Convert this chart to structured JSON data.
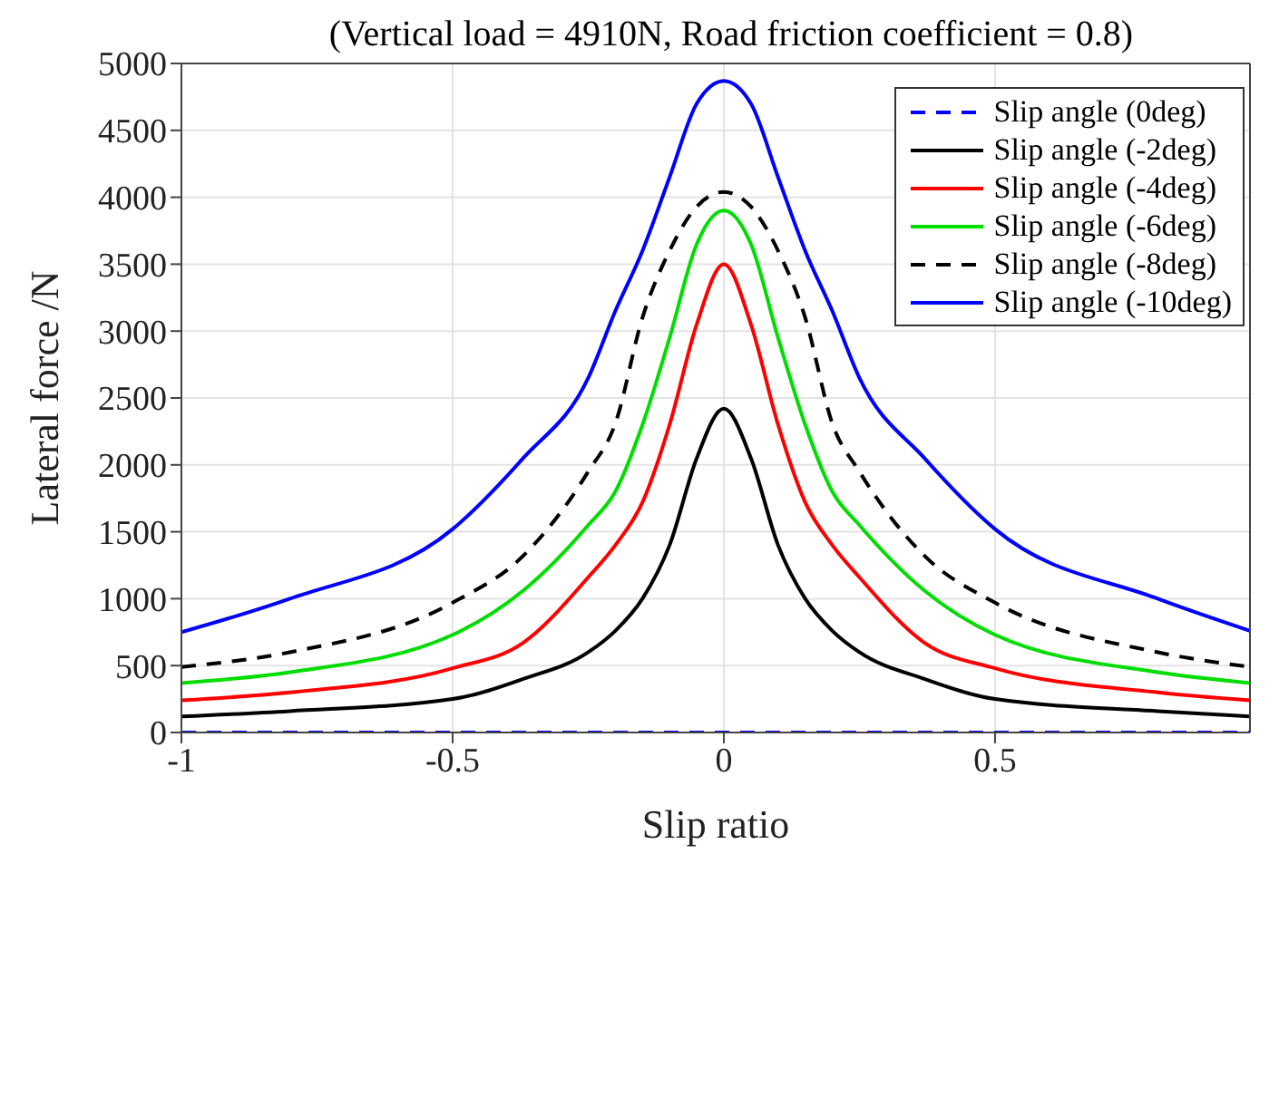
{
  "chart_data": {
    "type": "line",
    "title": "(Vertical load = 4910N, Road friction coefficient = 0.8)",
    "xlabel": "Slip ratio",
    "ylabel": "Lateral force /N",
    "x": [
      -1,
      -0.8,
      -0.5,
      -0.37,
      -0.25,
      -0.2,
      -0.15,
      -0.1,
      -0.05,
      0,
      0.05,
      0.1,
      0.15,
      0.2,
      0.25,
      0.37,
      0.5,
      0.8,
      0.97
    ],
    "series": [
      {
        "name": "Slip angle (0deg)",
        "color": "#0000ff",
        "line_style": "dashed",
        "values": [
          0,
          0,
          0,
          0,
          0,
          0,
          0,
          0,
          0,
          0,
          0,
          0,
          0,
          0,
          0,
          0,
          0,
          0,
          0
        ]
      },
      {
        "name": "Slip angle (-2deg)",
        "color": "#000000",
        "line_style": "solid",
        "values": [
          120,
          160,
          250,
          400,
          600,
          760,
          1000,
          1400,
          2050,
          2420,
          2050,
          1400,
          1000,
          760,
          600,
          400,
          250,
          160,
          120
        ]
      },
      {
        "name": "Slip angle (-4deg)",
        "color": "#ff0000",
        "line_style": "solid",
        "values": [
          240,
          300,
          480,
          670,
          1160,
          1400,
          1720,
          2300,
          3050,
          3500,
          3050,
          2300,
          1720,
          1400,
          1160,
          670,
          480,
          300,
          240
        ]
      },
      {
        "name": "Slip angle (-6deg)",
        "color": "#00dd00",
        "line_style": "solid",
        "values": [
          370,
          450,
          730,
          1060,
          1550,
          1800,
          2300,
          2950,
          3650,
          3900,
          3650,
          2950,
          2300,
          1800,
          1550,
          1060,
          730,
          450,
          370
        ]
      },
      {
        "name": "Slip angle (-8deg)",
        "color": "#000000",
        "line_style": "dashed",
        "values": [
          490,
          600,
          970,
          1320,
          1950,
          2310,
          3100,
          3600,
          3930,
          4040,
          3930,
          3600,
          3100,
          2310,
          1950,
          1320,
          970,
          600,
          490
        ]
      },
      {
        "name": "Slip angle (-10deg)",
        "color": "#0000ff",
        "line_style": "solid",
        "values": [
          750,
          1000,
          1520,
          2050,
          2650,
          3150,
          3600,
          4150,
          4700,
          4870,
          4700,
          4150,
          3600,
          3150,
          2650,
          2050,
          1520,
          1000,
          760
        ]
      }
    ],
    "xlim": [
      -1,
      0.97
    ],
    "xticks": [
      -1,
      -0.5,
      0,
      0.5
    ],
    "ylim": [
      0,
      5000
    ],
    "yticks": [
      0,
      500,
      1000,
      1500,
      2000,
      2500,
      3000,
      3500,
      4000,
      4500,
      5000
    ],
    "grid": true,
    "legend": "top right"
  }
}
